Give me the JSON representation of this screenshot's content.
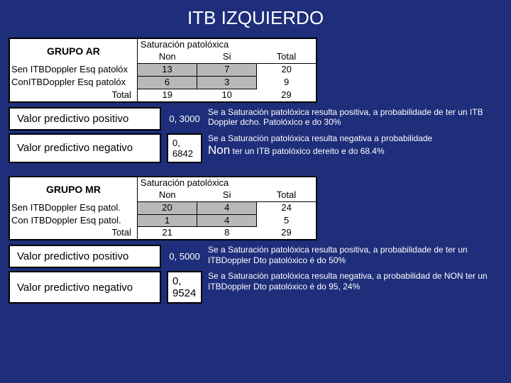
{
  "page_title": "ITB IZQUIERDO",
  "headers": {
    "sat_label": "Saturación patolóxica",
    "non": "Non",
    "si": "Si",
    "total": "Total"
  },
  "group_ar": {
    "name": "GRUPO AR",
    "rows": [
      {
        "label": "Sen ITBDoppler Esq patolóx",
        "non": "13",
        "si": "7",
        "total": "20"
      },
      {
        "label": "ConITBDoppler Esq patolóx",
        "non": "6",
        "si": "3",
        "total": "9"
      }
    ],
    "total_label": "Total",
    "totals": {
      "non": "19",
      "si": "10",
      "total": "29"
    },
    "vpp_label": "Valor predictivo positivo",
    "vpp_val": "0, 3000",
    "vpp_text": "Se a Saturación patolóxica resulta positiva, a probabilidade de ter un  ITB Doppler dcho. Patolóxico e do 30%",
    "vpn_label": "Valor predictivo negativo",
    "vpn_val": "0, 6842",
    "vpn_text1": "Se a Saturación patolóxica resulta negativa a probabilidade",
    "vpn_text2": "Non",
    "vpn_text3": " ter un ITB patolóxico dereito e do 68.4%"
  },
  "group_mr": {
    "name": "GRUPO MR",
    "rows": [
      {
        "label": "Sen ITBDoppler Esq patol.",
        "non": "20",
        "si": "4",
        "total": "24"
      },
      {
        "label": "Con ITBDoppler Esq patol.",
        "non": "1",
        "si": "4",
        "total": "5"
      }
    ],
    "total_label": "Total",
    "totals": {
      "non": "21",
      "si": "8",
      "total": "29"
    },
    "vpp_label": "Valor predictivo positivo",
    "vpp_val": "0, 5000",
    "vpp_text": "Se a Saturación patolóxica resulta positiva, a probabilidade de ter un ITBDoppler Dto patolóxico é do 50%",
    "vpn_label": "Valor predictivo negativo",
    "vpn_val": "0, 9524",
    "vpn_text": "Se a Saturación patolóxica resulta negativa, a probabilidad de NON ter un ITBDoppler Dto patolóxico é do 95, 24%"
  }
}
